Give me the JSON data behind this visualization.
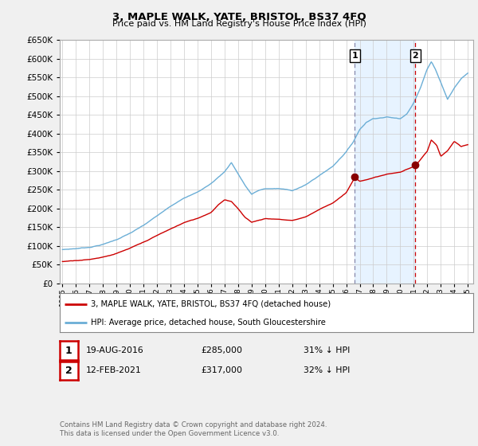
{
  "title": "3, MAPLE WALK, YATE, BRISTOL, BS37 4FQ",
  "subtitle": "Price paid vs. HM Land Registry's House Price Index (HPI)",
  "legend_line1": "3, MAPLE WALK, YATE, BRISTOL, BS37 4FQ (detached house)",
  "legend_line2": "HPI: Average price, detached house, South Gloucestershire",
  "sale1_label": "1",
  "sale1_date": "19-AUG-2016",
  "sale1_price": "£285,000",
  "sale1_hpi": "31% ↓ HPI",
  "sale1_year": 2016.63,
  "sale1_value": 285000,
  "sale2_label": "2",
  "sale2_date": "12-FEB-2021",
  "sale2_price": "£317,000",
  "sale2_hpi": "32% ↓ HPI",
  "sale2_year": 2021.12,
  "sale2_value": 317000,
  "footer": "Contains HM Land Registry data © Crown copyright and database right 2024.\nThis data is licensed under the Open Government Licence v3.0.",
  "hpi_color": "#6baed6",
  "price_color": "#cc0000",
  "vline1_color": "#8888aa",
  "vline2_color": "#cc0000",
  "marker_color": "#880000",
  "shade_color": "#ddeeff",
  "background_color": "#f0f0f0",
  "plot_bg_color": "#ffffff",
  "ylim": [
    0,
    650000
  ],
  "xlim_start": 1994.8,
  "xlim_end": 2025.4,
  "hpi_keypoints_x": [
    1995,
    1996,
    1997,
    1998,
    1999,
    2000,
    2001,
    2002,
    2003,
    2004,
    2005,
    2006,
    2007,
    2007.5,
    2008,
    2008.5,
    2009,
    2009.5,
    2010,
    2011,
    2012,
    2013,
    2014,
    2015,
    2016,
    2016.5,
    2017,
    2017.5,
    2018,
    2019,
    2020,
    2020.5,
    2021,
    2021.5,
    2022,
    2022.3,
    2022.6,
    2023,
    2023.5,
    2024,
    2024.5,
    2025
  ],
  "hpi_keypoints_y": [
    90000,
    93000,
    97000,
    105000,
    118000,
    135000,
    155000,
    180000,
    205000,
    230000,
    245000,
    268000,
    300000,
    325000,
    295000,
    265000,
    240000,
    250000,
    255000,
    255000,
    250000,
    265000,
    290000,
    315000,
    355000,
    380000,
    415000,
    435000,
    445000,
    450000,
    445000,
    460000,
    490000,
    530000,
    580000,
    600000,
    580000,
    545000,
    500000,
    530000,
    555000,
    570000
  ],
  "price_keypoints_x": [
    1995,
    1996,
    1997,
    1998,
    1999,
    2000,
    2001,
    2002,
    2003,
    2004,
    2005,
    2006,
    2006.5,
    2007,
    2007.5,
    2008,
    2008.5,
    2009,
    2009.5,
    2010,
    2011,
    2012,
    2013,
    2014,
    2015,
    2016,
    2016.63,
    2017,
    2018,
    2019,
    2020,
    2021,
    2021.12,
    2022,
    2022.3,
    2022.7,
    2023,
    2023.5,
    2024,
    2024.5,
    2025
  ],
  "price_keypoints_y": [
    58000,
    62000,
    65000,
    72000,
    82000,
    95000,
    110000,
    128000,
    145000,
    162000,
    173000,
    190000,
    210000,
    225000,
    220000,
    200000,
    178000,
    165000,
    170000,
    175000,
    173000,
    170000,
    180000,
    200000,
    218000,
    245000,
    285000,
    275000,
    285000,
    295000,
    300000,
    315000,
    317000,
    355000,
    385000,
    370000,
    340000,
    355000,
    380000,
    365000,
    370000
  ]
}
